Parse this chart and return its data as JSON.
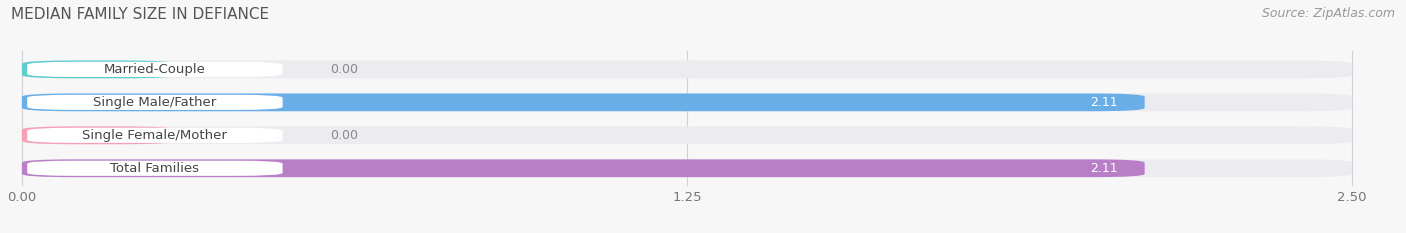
{
  "title": "MEDIAN FAMILY SIZE IN DEFIANCE",
  "source": "Source: ZipAtlas.com",
  "categories": [
    "Married-Couple",
    "Single Male/Father",
    "Single Female/Mother",
    "Total Families"
  ],
  "values": [
    0.0,
    2.11,
    0.0,
    2.11
  ],
  "bar_colors": [
    "#5ececa",
    "#6aaee8",
    "#f4a0b5",
    "#b87fc7"
  ],
  "bar_bg_color": "#ebebf0",
  "xlim_min": 0.0,
  "xlim_max": 2.5,
  "xticks": [
    0.0,
    1.25,
    2.5
  ],
  "xtick_labels": [
    "0.00",
    "1.25",
    "2.50"
  ],
  "label_fontsize": 9.5,
  "title_fontsize": 11,
  "value_fontsize": 9,
  "source_fontsize": 9,
  "grid_color": "#d0d0d8",
  "background_color": "#f7f7f7",
  "bar_height": 0.54,
  "label_bg_color": "#ffffff",
  "label_text_color": "#444444",
  "value_color_inside": "#ffffff",
  "value_color_outside": "#888888",
  "title_color": "#555555",
  "source_color": "#999999"
}
